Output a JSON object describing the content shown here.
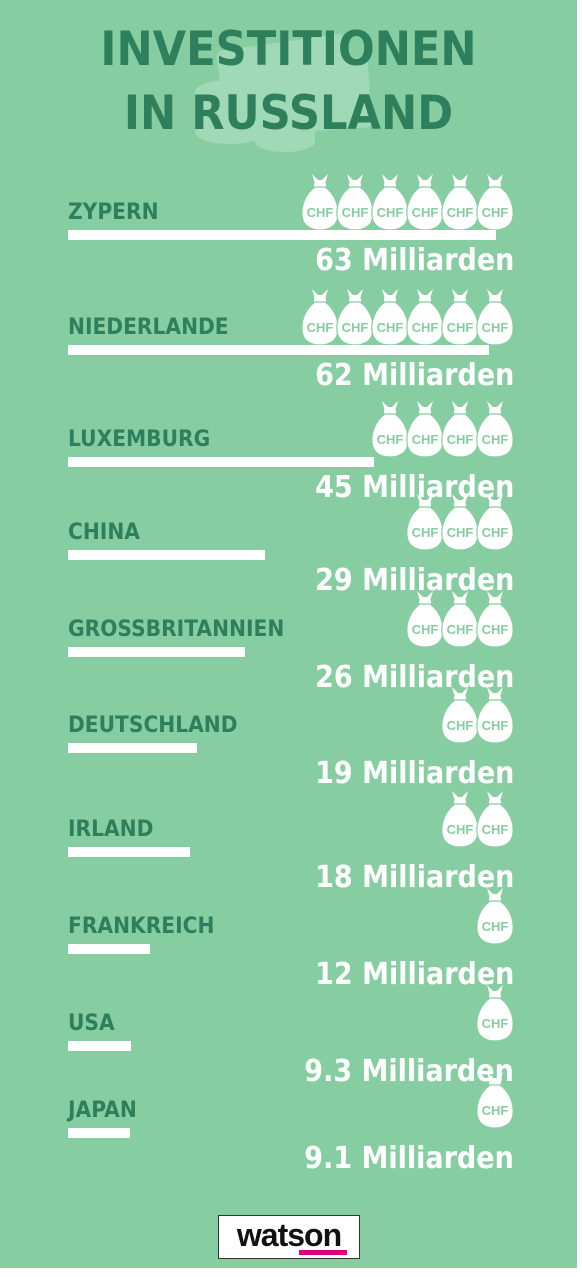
{
  "title_line1": "INVESTITIONEN",
  "title_line2": "IN RUSSLAND",
  "bag_label": "CHF",
  "colors": {
    "background": "#87cda2",
    "title": "#2e7f5c",
    "bar": "#ffffff",
    "amount": "#ffffff",
    "logo_accent": "#e0007a"
  },
  "chart_data": {
    "type": "bar",
    "orientation": "horizontal",
    "unit": "Milliarden",
    "categories": [
      "ZYPERN",
      "NIEDERLANDE",
      "LUXEMBURG",
      "CHINA",
      "GROSSBRITANNIEN",
      "DEUTSCHLAND",
      "IRLAND",
      "FRANKREICH",
      "USA",
      "JAPAN"
    ],
    "values": [
      63,
      62,
      45,
      29,
      26,
      19,
      18,
      12,
      9.3,
      9.1
    ],
    "labels": [
      "63 Milliarden",
      "62 Milliarden",
      "45 Milliarden",
      "29 Milliarden",
      "26 Milliarden",
      "19 Milliarden",
      "18 Milliarden",
      "12 Milliarden",
      "9.3 Milliarden",
      "9.1 Milliarden"
    ]
  },
  "logo": {
    "text": "watson"
  }
}
